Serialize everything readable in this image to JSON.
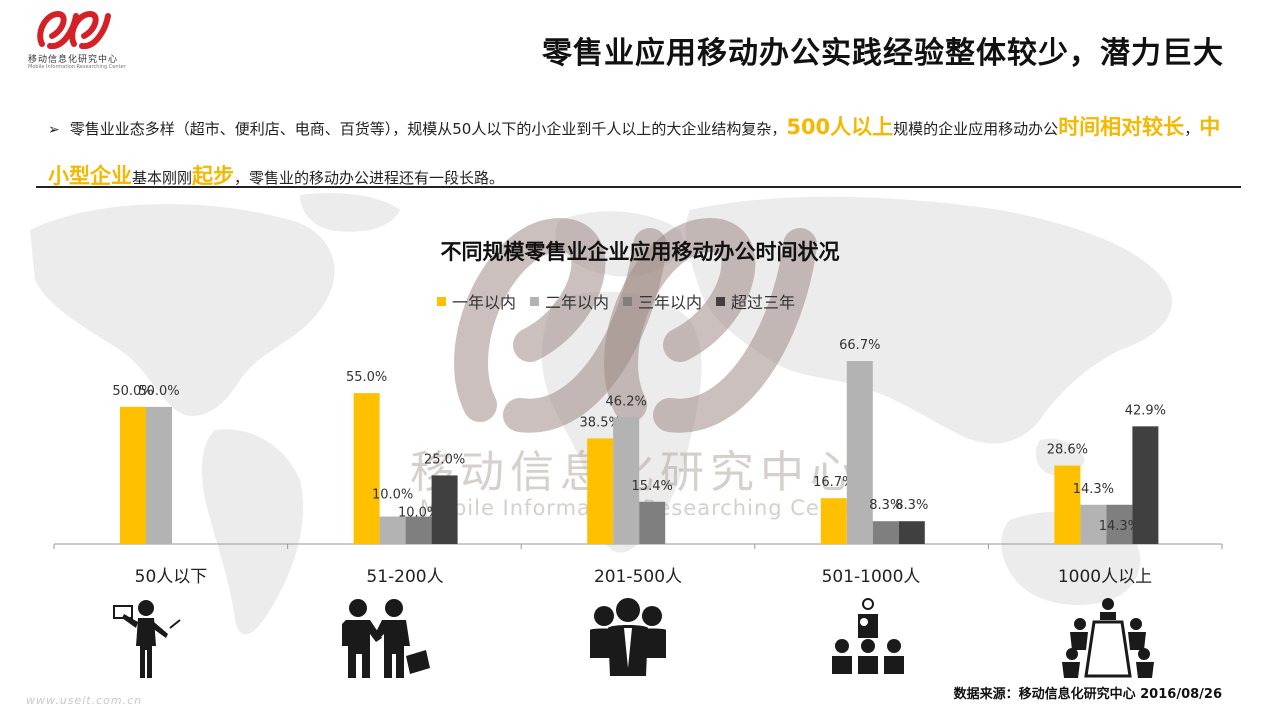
{
  "header": {
    "logo_cn": "移动信息化研究中心",
    "logo_en": "Mobile Information Researching Center",
    "title": "零售业应用移动办公实践经验整体较少，潜力巨大"
  },
  "bullet": {
    "arrow": "➢",
    "t1": "零售业业态多样（超市、便利店、电商、百货等），规模从50人以下的小企业到千人以上的大企业结构复杂，",
    "h1": "500人以上",
    "t2": "规模的企业应用移动办公",
    "h2": "时间相对较长",
    "t3": "，",
    "h3": "中小型企业",
    "t4": "基本刚刚",
    "h4": "起步",
    "t5": "，零售业的移动办公进程还有一段长路。"
  },
  "watermark": {
    "cn": "移动信息化研究中心",
    "en": "Mobile Information Researching Center"
  },
  "chart_data": {
    "type": "bar",
    "title": "不同规模零售业企业应用移动办公时间状况",
    "categories": [
      "50人以下",
      "51-200人",
      "201-500人",
      "501-1000人",
      "1000人以上"
    ],
    "series": [
      {
        "name": "一年以内",
        "color": "#ffc000",
        "values": [
          50.0,
          55.0,
          38.5,
          16.7,
          28.6
        ]
      },
      {
        "name": "二年以内",
        "color": "#b3b3b3",
        "values": [
          50.0,
          10.0,
          46.2,
          66.7,
          14.3
        ]
      },
      {
        "name": "三年以内",
        "color": "#7f7f7f",
        "values": [
          null,
          10.0,
          15.4,
          8.3,
          14.3
        ]
      },
      {
        "name": "超过三年",
        "color": "#404040",
        "values": [
          null,
          25.0,
          null,
          8.3,
          42.9
        ]
      }
    ],
    "value_suffix": "%",
    "ylim": [
      0,
      70
    ],
    "legend_position": "top-center",
    "grid": false
  },
  "icons": [
    "presenter-icon",
    "handshake-icon",
    "group-icon",
    "meeting-icon",
    "conference-table-icon"
  ],
  "footer": {
    "source": "数据来源：移动信息化研究中心 2016/08/26",
    "site": "www.useit.com.cn"
  }
}
